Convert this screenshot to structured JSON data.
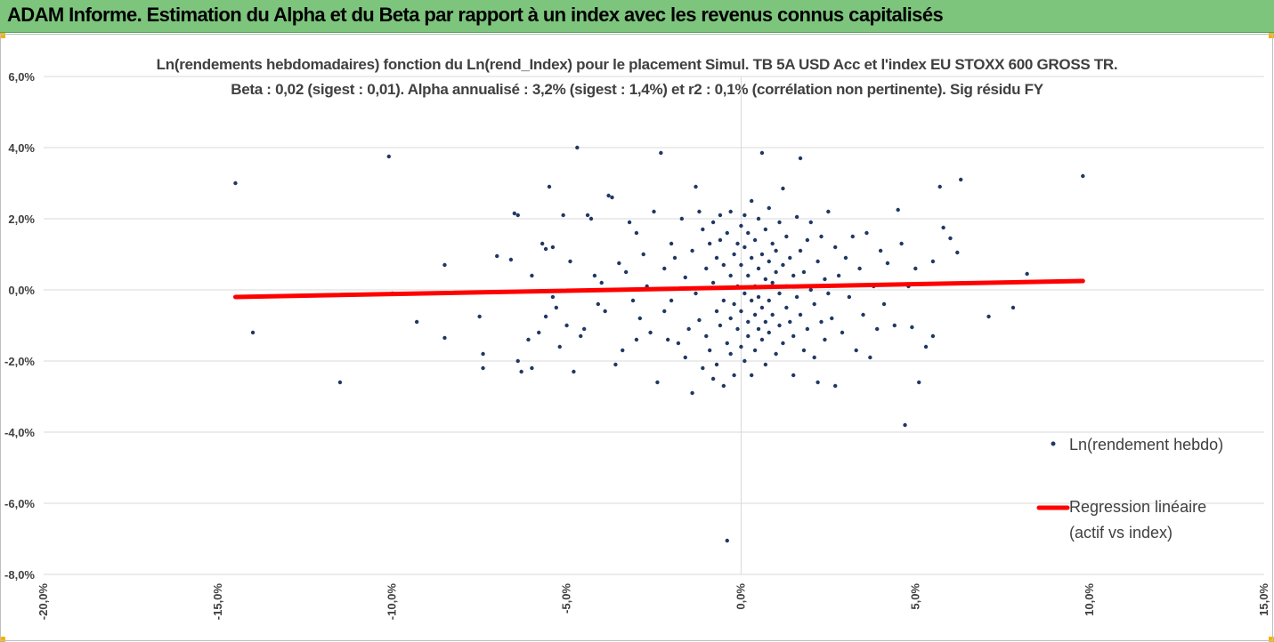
{
  "header": {
    "title": "ADAM Informe. Estimation du Alpha et du Beta par rapport à un index avec les revenus connus capitalisés"
  },
  "colors": {
    "banner": "#7dc57d",
    "points": "#1f3864",
    "regression": "#ff0000",
    "accent": "#f2b400"
  },
  "chart_data": {
    "type": "scatter",
    "title": "Ln(rendements hebdomadaires) fonction du Ln(rend_Index) pour le placement Simul. TB 5A USD Acc et l'index EU STOXX 600 GROSS TR.",
    "subtitle": "Beta : 0,02 (sigest : 0,01). Alpha annualisé : 3,2% (sigest : 1,4%) et r2 : 0,1% (corrélation non pertinente). Sig résidu FY",
    "xlabel": "",
    "ylabel": "",
    "xlim": [
      -0.2,
      0.15
    ],
    "ylim": [
      -0.08,
      0.06
    ],
    "x_ticks": [
      -0.2,
      -0.15,
      -0.1,
      -0.05,
      0.0,
      0.05,
      0.1,
      0.15
    ],
    "x_tick_labels": [
      "-20,0%",
      "-15,0%",
      "-10,0%",
      "-5,0%",
      "0,0%",
      "5,0%",
      "10,0%",
      "15,0%"
    ],
    "y_ticks": [
      0.06,
      0.04,
      0.02,
      0.0,
      -0.02,
      -0.04,
      -0.06,
      -0.08
    ],
    "y_tick_labels": [
      "6,0%",
      "4,0%",
      "2,0%",
      "0,0%",
      "-2,0%",
      "-4,0%",
      "-6,0%",
      "-8,0%"
    ],
    "grid": "horizontal",
    "legend_position": "right",
    "series": [
      {
        "name": "Ln(rendement hebdo)",
        "kind": "points",
        "points": [
          [
            -0.145,
            0.03
          ],
          [
            -0.14,
            -0.012
          ],
          [
            -0.115,
            -0.026
          ],
          [
            -0.101,
            0.0375
          ],
          [
            -0.1,
            -0.001
          ],
          [
            -0.093,
            -0.009
          ],
          [
            -0.085,
            0.007
          ],
          [
            -0.085,
            -0.0135
          ],
          [
            -0.075,
            -0.0075
          ],
          [
            -0.074,
            -0.018
          ],
          [
            -0.074,
            -0.022
          ],
          [
            -0.07,
            0.0095
          ],
          [
            -0.066,
            0.0085
          ],
          [
            -0.065,
            0.0215
          ],
          [
            -0.064,
            0.021
          ],
          [
            -0.064,
            -0.02
          ],
          [
            -0.063,
            -0.023
          ],
          [
            -0.061,
            -0.014
          ],
          [
            -0.06,
            0.004
          ],
          [
            -0.06,
            -0.022
          ],
          [
            -0.058,
            -0.012
          ],
          [
            -0.057,
            0.013
          ],
          [
            -0.056,
            0.0115
          ],
          [
            -0.056,
            -0.0075
          ],
          [
            -0.055,
            0.029
          ],
          [
            -0.054,
            0.012
          ],
          [
            -0.054,
            -0.002
          ],
          [
            -0.053,
            -0.005
          ],
          [
            -0.052,
            -0.016
          ],
          [
            -0.051,
            0.021
          ],
          [
            -0.05,
            -0.01
          ],
          [
            -0.049,
            0.008
          ],
          [
            -0.048,
            -0.023
          ],
          [
            -0.047,
            0.04
          ],
          [
            -0.046,
            -0.013
          ],
          [
            -0.045,
            -0.011
          ],
          [
            -0.044,
            0.021
          ],
          [
            -0.043,
            0.02
          ],
          [
            -0.042,
            0.004
          ],
          [
            -0.041,
            -0.004
          ],
          [
            -0.04,
            0.002
          ],
          [
            -0.039,
            -0.006
          ],
          [
            -0.038,
            0.0265
          ],
          [
            -0.037,
            0.026
          ],
          [
            -0.036,
            -0.021
          ],
          [
            -0.035,
            0.0075
          ],
          [
            -0.034,
            -0.017
          ],
          [
            -0.033,
            0.005
          ],
          [
            -0.032,
            0.019
          ],
          [
            -0.031,
            -0.003
          ],
          [
            -0.03,
            -0.014
          ],
          [
            -0.03,
            0.016
          ],
          [
            -0.029,
            -0.008
          ],
          [
            -0.028,
            0.01
          ],
          [
            -0.027,
            0.001
          ],
          [
            -0.026,
            -0.012
          ],
          [
            -0.025,
            0.022
          ],
          [
            -0.024,
            -0.026
          ],
          [
            -0.023,
            0.0385
          ],
          [
            -0.022,
            0.006
          ],
          [
            -0.022,
            -0.006
          ],
          [
            -0.021,
            -0.014
          ],
          [
            -0.02,
            0.013
          ],
          [
            -0.02,
            -0.003
          ],
          [
            -0.019,
            0.009
          ],
          [
            -0.018,
            -0.015
          ],
          [
            -0.017,
            0.02
          ],
          [
            -0.016,
            0.0035
          ],
          [
            -0.016,
            -0.019
          ],
          [
            -0.015,
            -0.011
          ],
          [
            -0.014,
            0.011
          ],
          [
            -0.014,
            -0.029
          ],
          [
            -0.013,
            0.029
          ],
          [
            -0.013,
            -0.001
          ],
          [
            -0.012,
            -0.0085
          ],
          [
            -0.012,
            0.022
          ],
          [
            -0.011,
            0.017
          ],
          [
            -0.011,
            -0.022
          ],
          [
            -0.01,
            0.006
          ],
          [
            -0.01,
            -0.013
          ],
          [
            -0.009,
            0.013
          ],
          [
            -0.009,
            -0.017
          ],
          [
            -0.008,
            0.002
          ],
          [
            -0.008,
            0.019
          ],
          [
            -0.008,
            -0.025
          ],
          [
            -0.007,
            -0.006
          ],
          [
            -0.007,
            0.009
          ],
          [
            -0.007,
            -0.021
          ],
          [
            -0.006,
            0.014
          ],
          [
            -0.006,
            -0.01
          ],
          [
            -0.006,
            0.021
          ],
          [
            -0.005,
            -0.003
          ],
          [
            -0.005,
            -0.027
          ],
          [
            -0.005,
            0.007
          ],
          [
            -0.004,
            -0.015
          ],
          [
            -0.004,
            0.016
          ],
          [
            -0.004,
            -0.0705
          ],
          [
            -0.003,
            0.004
          ],
          [
            -0.003,
            -0.008
          ],
          [
            -0.003,
            0.022
          ],
          [
            -0.003,
            -0.018
          ],
          [
            -0.002,
            0.01
          ],
          [
            -0.002,
            -0.004
          ],
          [
            -0.002,
            -0.024
          ],
          [
            -0.001,
            0.013
          ],
          [
            -0.001,
            -0.011
          ],
          [
            -0.001,
            0.001
          ],
          [
            0.0,
            0.018
          ],
          [
            0.0,
            -0.006
          ],
          [
            0.0,
            -0.016
          ],
          [
            0.0,
            0.007
          ],
          [
            0.001,
            -0.001
          ],
          [
            0.001,
            0.012
          ],
          [
            0.001,
            -0.02
          ],
          [
            0.001,
            0.021
          ],
          [
            0.002,
            -0.009
          ],
          [
            0.002,
            0.004
          ],
          [
            0.002,
            -0.013
          ],
          [
            0.002,
            0.016
          ],
          [
            0.003,
            -0.003
          ],
          [
            0.003,
            0.009
          ],
          [
            0.003,
            -0.024
          ],
          [
            0.003,
            0.025
          ],
          [
            0.004,
            0.001
          ],
          [
            0.004,
            -0.007
          ],
          [
            0.004,
            0.014
          ],
          [
            0.004,
            -0.017
          ],
          [
            0.005,
            0.006
          ],
          [
            0.005,
            -0.011
          ],
          [
            0.005,
            0.02
          ],
          [
            0.005,
            -0.002
          ],
          [
            0.006,
            0.01
          ],
          [
            0.006,
            -0.014
          ],
          [
            0.006,
            0.0385
          ],
          [
            0.006,
            -0.005
          ],
          [
            0.007,
            0.003
          ],
          [
            0.007,
            0.017
          ],
          [
            0.007,
            -0.009
          ],
          [
            0.007,
            -0.021
          ],
          [
            0.008,
            0.008
          ],
          [
            0.008,
            -0.003
          ],
          [
            0.008,
            0.023
          ],
          [
            0.008,
            -0.012
          ],
          [
            0.009,
            0.002
          ],
          [
            0.009,
            0.013
          ],
          [
            0.009,
            -0.007
          ],
          [
            0.01,
            -0.018
          ],
          [
            0.01,
            0.011
          ],
          [
            0.01,
            0.005
          ],
          [
            0.011,
            -0.001
          ],
          [
            0.011,
            -0.01
          ],
          [
            0.011,
            0.019
          ],
          [
            0.012,
            0.007
          ],
          [
            0.012,
            -0.015
          ],
          [
            0.012,
            0.0285
          ],
          [
            0.013,
            0.001
          ],
          [
            0.013,
            -0.005
          ],
          [
            0.013,
            0.015
          ],
          [
            0.014,
            -0.009
          ],
          [
            0.014,
            0.009
          ],
          [
            0.015,
            -0.024
          ],
          [
            0.015,
            0.004
          ],
          [
            0.015,
            -0.013
          ],
          [
            0.016,
            0.0205
          ],
          [
            0.016,
            -0.002
          ],
          [
            0.017,
            0.011
          ],
          [
            0.017,
            0.037
          ],
          [
            0.017,
            -0.007
          ],
          [
            0.018,
            0.005
          ],
          [
            0.018,
            -0.017
          ],
          [
            0.019,
            0.014
          ],
          [
            0.019,
            -0.011
          ],
          [
            0.02,
            0.0
          ],
          [
            0.02,
            0.019
          ],
          [
            0.021,
            -0.004
          ],
          [
            0.021,
            -0.019
          ],
          [
            0.022,
            0.008
          ],
          [
            0.022,
            -0.026
          ],
          [
            0.023,
            0.015
          ],
          [
            0.023,
            -0.009
          ],
          [
            0.024,
            0.003
          ],
          [
            0.024,
            -0.014
          ],
          [
            0.025,
            0.022
          ],
          [
            0.025,
            -0.001
          ],
          [
            0.026,
            -0.008
          ],
          [
            0.027,
            0.012
          ],
          [
            0.027,
            -0.027
          ],
          [
            0.028,
            0.004
          ],
          [
            0.029,
            -0.012
          ],
          [
            0.03,
            0.009
          ],
          [
            0.031,
            -0.002
          ],
          [
            0.032,
            0.015
          ],
          [
            0.033,
            -0.017
          ],
          [
            0.034,
            0.006
          ],
          [
            0.035,
            -0.007
          ],
          [
            0.036,
            0.016
          ],
          [
            0.037,
            -0.019
          ],
          [
            0.038,
            0.001
          ],
          [
            0.039,
            -0.011
          ],
          [
            0.04,
            0.011
          ],
          [
            0.041,
            -0.004
          ],
          [
            0.042,
            0.0075
          ],
          [
            0.044,
            -0.01
          ],
          [
            0.045,
            0.0225
          ],
          [
            0.046,
            0.013
          ],
          [
            0.047,
            -0.038
          ],
          [
            0.048,
            0.001
          ],
          [
            0.049,
            -0.0105
          ],
          [
            0.05,
            0.006
          ],
          [
            0.051,
            -0.026
          ],
          [
            0.053,
            -0.016
          ],
          [
            0.055,
            -0.013
          ],
          [
            0.055,
            0.008
          ],
          [
            0.057,
            0.029
          ],
          [
            0.058,
            0.0175
          ],
          [
            0.06,
            0.0145
          ],
          [
            0.062,
            0.0105
          ],
          [
            0.063,
            0.031
          ],
          [
            0.071,
            -0.0075
          ],
          [
            0.078,
            -0.005
          ],
          [
            0.082,
            0.0045
          ],
          [
            0.098,
            0.032
          ]
        ]
      },
      {
        "name": "Regression linéaire (actif vs index)",
        "kind": "line",
        "x": [
          -0.145,
          0.098
        ],
        "y": [
          -0.002,
          0.0025
        ]
      }
    ],
    "legend": {
      "points_label": "Ln(rendement hebdo)",
      "line_label_1": "Regression linéaire",
      "line_label_2": "(actif vs index)"
    }
  }
}
